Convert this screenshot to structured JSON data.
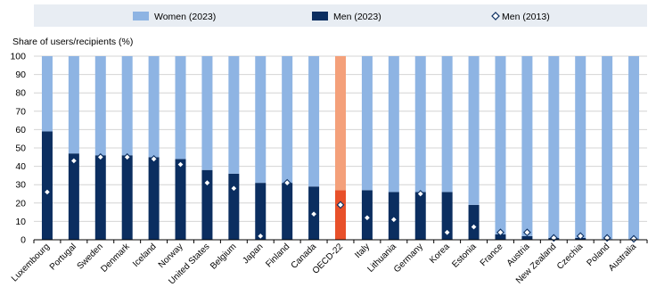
{
  "chart_data": {
    "type": "bar",
    "ylabel": "Share of users/recipients (%)",
    "ylim": [
      0,
      100
    ],
    "yticks": [
      0,
      10,
      20,
      30,
      40,
      50,
      60,
      70,
      80,
      90,
      100
    ],
    "grid": true,
    "legend_position": "top",
    "categories": [
      "Luxembourg",
      "Portugal",
      "Sweden",
      "Denmark",
      "Iceland",
      "Norway",
      "United States",
      "Belgium",
      "Japan",
      "Finland",
      "Canada",
      "OECD-22",
      "Italy",
      "Lithuania",
      "Germany",
      "Korea",
      "Estonia",
      "France",
      "Austria",
      "New Zealand",
      "Czechia",
      "Poland",
      "Australia"
    ],
    "highlight_category": "OECD-22",
    "series": [
      {
        "name": "Women (2023)",
        "kind": "stacked-bar",
        "values": [
          41,
          53,
          54,
          54,
          55,
          56,
          62,
          64,
          69,
          69,
          71,
          73,
          73,
          74,
          74,
          74,
          81,
          97,
          98,
          99,
          99,
          100,
          100
        ]
      },
      {
        "name": "Men (2023)",
        "kind": "stacked-bar",
        "values": [
          59,
          47,
          46,
          46,
          45,
          44,
          38,
          36,
          31,
          31,
          29,
          27,
          27,
          26,
          26,
          26,
          19,
          3,
          2,
          1,
          1,
          0,
          0
        ]
      },
      {
        "name": "Men (2013)",
        "kind": "marker",
        "values": [
          26,
          43,
          45,
          45,
          44,
          41,
          31,
          28,
          2,
          31,
          14,
          19,
          12,
          11,
          25,
          4,
          7,
          4,
          4,
          1,
          2,
          1,
          0.5
        ]
      }
    ],
    "colors": {
      "women": "#8EB4E3",
      "men": "#0B2E60",
      "women_highlight": "#F4A07A",
      "men_highlight": "#E8502A",
      "marker_fill": "#ffffff",
      "marker_stroke": "#0B2E60",
      "legend_band": "#E8EDF3",
      "grid": "#d4d4d4"
    }
  }
}
